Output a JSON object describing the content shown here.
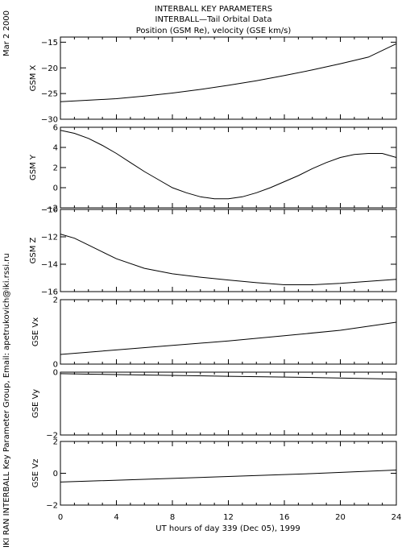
{
  "header": {
    "title": "INTERBALL KEY PARAMETERS",
    "subtitle": "INTERBALL—Tail Orbital Data",
    "subtitle2": "Position (GSM Re), velocity (GSE km/s)"
  },
  "side": {
    "date": "Mar  2 2000",
    "credit": "IKI RAN INTERBALL Key Parameter Group, Email: apetrukovich@iki.rssi.ru"
  },
  "chart_data": {
    "type": "line",
    "xlabel": "UT hours of day 339 (Dec 05), 1999",
    "xlim": [
      0,
      24
    ],
    "xticks": [
      "0",
      "4",
      "8",
      "12",
      "16",
      "20",
      "24"
    ],
    "panels": [
      {
        "ylabel": "GSM X",
        "ylim": [
          -30,
          -14
        ],
        "yticks": [
          -30,
          -25,
          -20,
          -15
        ],
        "x": [
          0,
          2,
          4,
          6,
          8,
          10,
          12,
          14,
          16,
          18,
          20,
          22,
          24
        ],
        "values": [
          -26.6,
          -26.3,
          -26.0,
          -25.5,
          -24.9,
          -24.2,
          -23.4,
          -22.5,
          -21.5,
          -20.4,
          -19.2,
          -17.9,
          -15.3
        ]
      },
      {
        "ylabel": "GSM Y",
        "ylim": [
          -2,
          6
        ],
        "yticks": [
          -2,
          0,
          2,
          4,
          6
        ],
        "x": [
          0,
          1,
          2,
          3,
          4,
          5,
          6,
          7,
          8,
          9,
          10,
          11,
          12,
          13,
          14,
          15,
          16,
          17,
          18,
          19,
          20,
          21,
          22,
          23,
          24
        ],
        "values": [
          5.7,
          5.4,
          4.9,
          4.2,
          3.4,
          2.5,
          1.6,
          0.8,
          0.0,
          -0.5,
          -0.9,
          -1.1,
          -1.1,
          -0.9,
          -0.5,
          0.0,
          0.6,
          1.2,
          1.9,
          2.5,
          3.0,
          3.3,
          3.4,
          3.4,
          3.0
        ]
      },
      {
        "ylabel": "GSM Z",
        "ylim": [
          -16,
          -10
        ],
        "yticks": [
          -16,
          -14,
          -12,
          -10
        ],
        "x": [
          0,
          1,
          2,
          3,
          4,
          6,
          8,
          10,
          12,
          14,
          16,
          18,
          20,
          22,
          24
        ],
        "values": [
          -11.8,
          -12.1,
          -12.6,
          -13.1,
          -13.6,
          -14.3,
          -14.7,
          -14.95,
          -15.15,
          -15.35,
          -15.5,
          -15.5,
          -15.4,
          -15.25,
          -15.1
        ]
      },
      {
        "ylabel": "GSE Vx",
        "ylim": [
          0,
          2
        ],
        "yticks": [
          0,
          2
        ],
        "x": [
          0,
          4,
          8,
          12,
          16,
          20,
          24
        ],
        "values": [
          0.3,
          0.44,
          0.58,
          0.72,
          0.88,
          1.05,
          1.3
        ]
      },
      {
        "ylabel": "GSE Vy",
        "ylim": [
          -2,
          0
        ],
        "yticks": [
          -2,
          0
        ],
        "x": [
          0,
          6,
          12,
          18,
          24
        ],
        "values": [
          -0.05,
          -0.09,
          -0.13,
          -0.17,
          -0.22
        ]
      },
      {
        "ylabel": "GSE Vz",
        "ylim": [
          -2,
          2
        ],
        "yticks": [
          -2,
          0,
          2
        ],
        "x": [
          0,
          6,
          12,
          18,
          24
        ],
        "values": [
          -0.55,
          -0.38,
          -0.2,
          -0.02,
          0.2
        ]
      }
    ]
  }
}
